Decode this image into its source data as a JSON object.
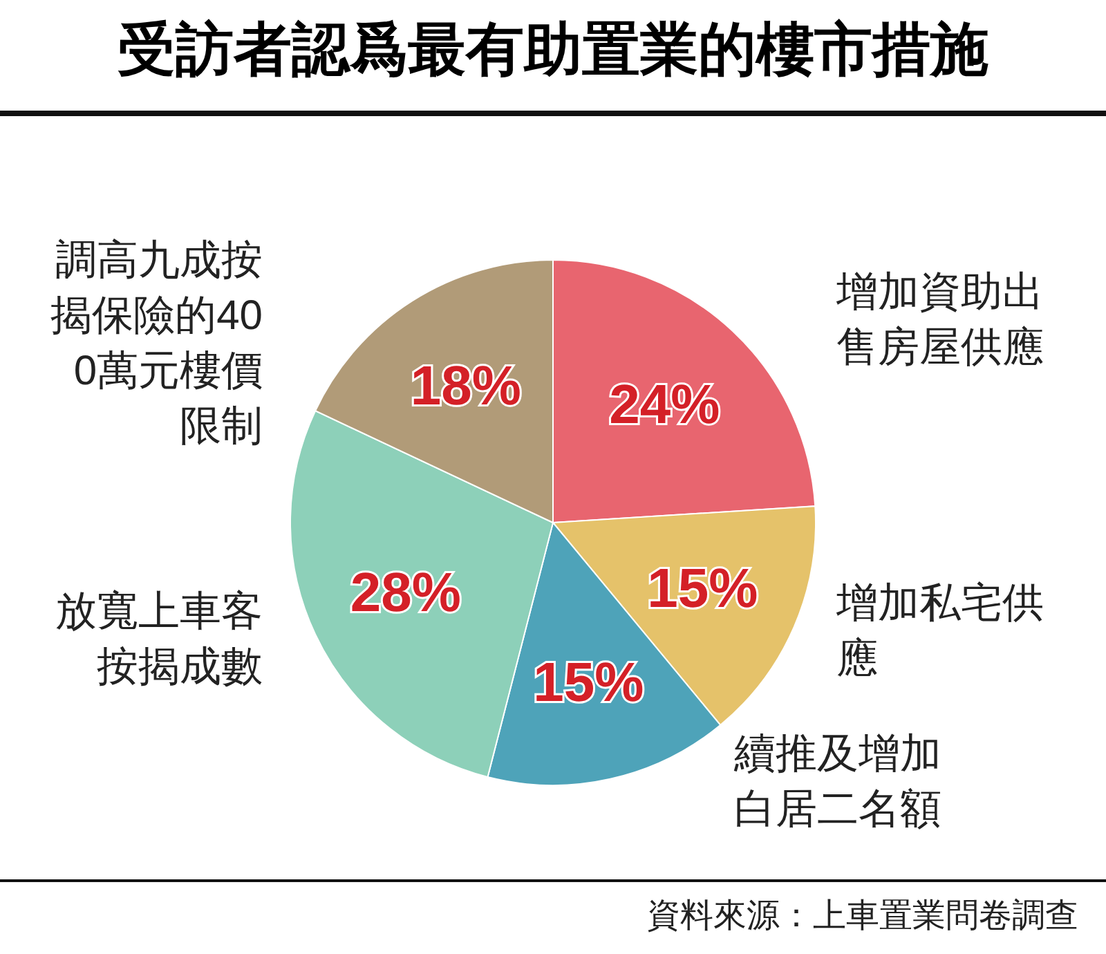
{
  "chart_data": {
    "type": "pie",
    "title": "受訪者認爲最有助置業的樓市措施",
    "categories": [
      "增加資助出售房屋供應",
      "增加私宅供應",
      "續推及增加白居二名額",
      "放寬上車客按揭成數",
      "調高九成按揭保險的400萬元樓價限制"
    ],
    "values": [
      24,
      15,
      15,
      28,
      18
    ],
    "colors": [
      "#e8656f",
      "#e5c26a",
      "#4ea3b9",
      "#8dd0b9",
      "#b19b78"
    ],
    "value_labels": [
      "24%",
      "15%",
      "15%",
      "28%",
      "18%"
    ],
    "annotations": [
      "資料來源：上車置業問卷調查"
    ]
  }
}
